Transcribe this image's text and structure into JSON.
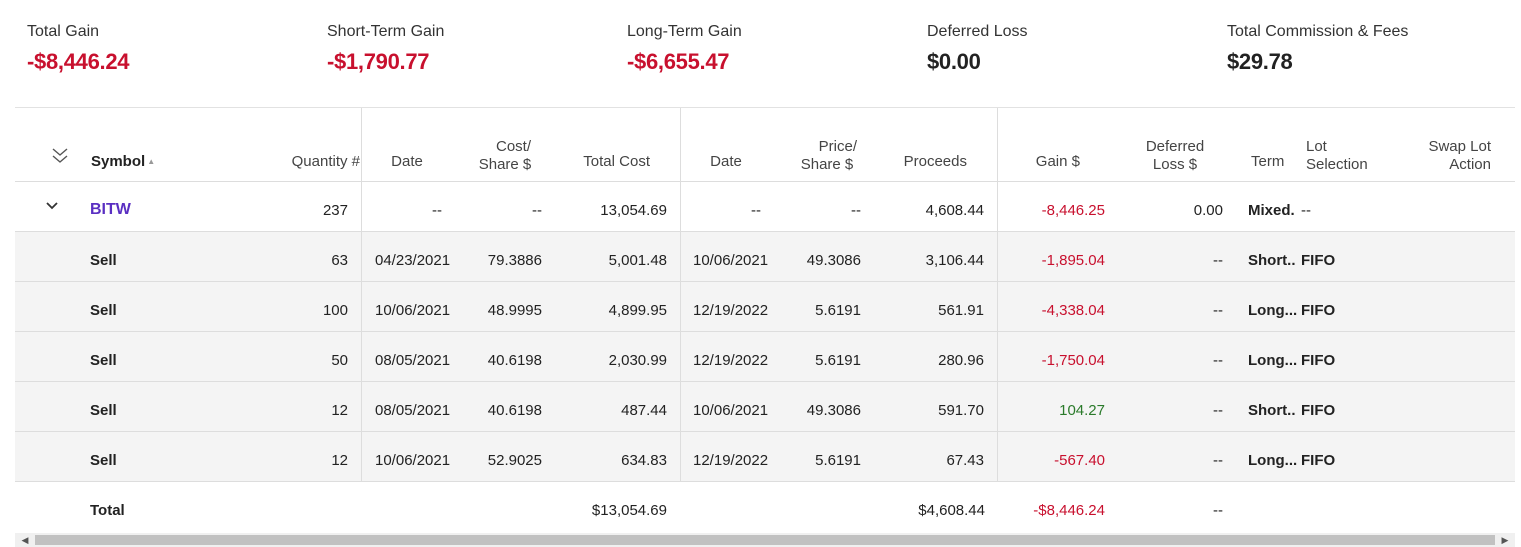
{
  "summary": {
    "total_gain": {
      "label": "Total Gain",
      "value": "-$8,446.24"
    },
    "short_term_gain": {
      "label": "Short-Term Gain",
      "value": "-$1,790.77"
    },
    "long_term_gain": {
      "label": "Long-Term Gain",
      "value": "-$6,655.47"
    },
    "deferred_loss": {
      "label": "Deferred Loss",
      "value": "$0.00"
    },
    "commission_fees": {
      "label": "Total Commission & Fees",
      "value": "$29.78"
    }
  },
  "columns": {
    "symbol": "Symbol",
    "quantity": "Quantity #",
    "acq_date": "Date",
    "cost_share_1": "Cost/",
    "cost_share_2": "Share $",
    "total_cost": "Total Cost",
    "sold_date": "Date",
    "price_share_1": "Price/",
    "price_share_2": "Share $",
    "proceeds": "Proceeds",
    "gain": "Gain $",
    "deferred_1": "Deferred",
    "deferred_2": "Loss $",
    "term": "Term",
    "lot_1": "Lot",
    "lot_2": "Selection",
    "swap_1": "Swap Lot",
    "swap_2": "Action"
  },
  "group": {
    "symbol": "BITW",
    "quantity": "237",
    "acq_date": "--",
    "cost_share": "--",
    "total_cost": "13,054.69",
    "sold_date": "--",
    "price_share": "--",
    "proceeds": "4,608.44",
    "gain": "-8,446.25",
    "deferred": "0.00",
    "term": "Mixed.",
    "lot": "--"
  },
  "lots": [
    {
      "action": "Sell",
      "quantity": "63",
      "acq_date": "04/23/2021",
      "cost_share": "79.3886",
      "total_cost": "5,001.48",
      "sold_date": "10/06/2021",
      "price_share": "49.3086",
      "proceeds": "3,106.44",
      "gain": "-1,895.04",
      "deferred": "--",
      "term": "Short..",
      "lot": "FIFO"
    },
    {
      "action": "Sell",
      "quantity": "100",
      "acq_date": "10/06/2021",
      "cost_share": "48.9995",
      "total_cost": "4,899.95",
      "sold_date": "12/19/2022",
      "price_share": "5.6191",
      "proceeds": "561.91",
      "gain": "-4,338.04",
      "deferred": "--",
      "term": "Long...",
      "lot": "FIFO"
    },
    {
      "action": "Sell",
      "quantity": "50",
      "acq_date": "08/05/2021",
      "cost_share": "40.6198",
      "total_cost": "2,030.99",
      "sold_date": "12/19/2022",
      "price_share": "5.6191",
      "proceeds": "280.96",
      "gain": "-1,750.04",
      "deferred": "--",
      "term": "Long...",
      "lot": "FIFO"
    },
    {
      "action": "Sell",
      "quantity": "12",
      "acq_date": "08/05/2021",
      "cost_share": "40.6198",
      "total_cost": "487.44",
      "sold_date": "10/06/2021",
      "price_share": "49.3086",
      "proceeds": "591.70",
      "gain": "104.27",
      "deferred": "--",
      "term": "Short..",
      "lot": "FIFO"
    },
    {
      "action": "Sell",
      "quantity": "12",
      "acq_date": "10/06/2021",
      "cost_share": "52.9025",
      "total_cost": "634.83",
      "sold_date": "12/19/2022",
      "price_share": "5.6191",
      "proceeds": "67.43",
      "gain": "-567.40",
      "deferred": "--",
      "term": "Long...",
      "lot": "FIFO"
    }
  ],
  "total": {
    "label": "Total",
    "total_cost": "$13,054.69",
    "proceeds": "$4,608.44",
    "gain": "-$8,446.24",
    "deferred": "--"
  },
  "icons": {
    "collapse_all": "double-chevron-down-icon",
    "sort": "sort-up-icon",
    "row_toggle": "chevron-down-icon"
  },
  "colors": {
    "negative": "#c8102e",
    "positive": "#2a7a2a",
    "symbol_link": "#5a2fc2"
  }
}
